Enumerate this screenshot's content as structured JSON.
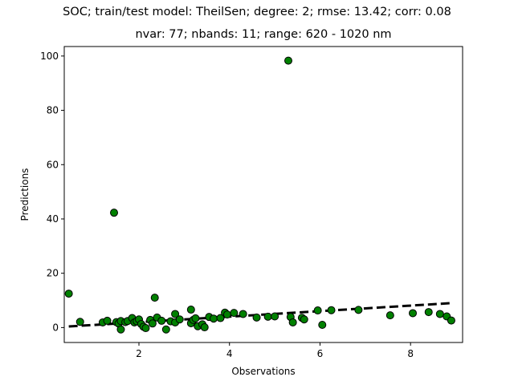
{
  "chart_data": {
    "type": "scatter",
    "title": "SOC; train/test model: TheilSen; degree: 2; rmse: 13.42; corr: 0.08",
    "subtitle": "nvar: 77; nbands: 11; range: 620 - 1020 nm",
    "xlabel": "Observations",
    "ylabel": "Predictions",
    "xlim": [
      0.35,
      9.15
    ],
    "ylim": [
      -5.5,
      103.5
    ],
    "xticks": [
      2,
      4,
      6,
      8
    ],
    "yticks": [
      0,
      20,
      40,
      60,
      80,
      100
    ],
    "grid": false,
    "point_color": "#008000",
    "point_edge_color": "#000000",
    "points": [
      [
        0.45,
        12.5
      ],
      [
        0.7,
        2.1
      ],
      [
        1.2,
        1.9
      ],
      [
        1.3,
        2.5
      ],
      [
        1.45,
        42.3
      ],
      [
        1.5,
        2.0
      ],
      [
        1.55,
        1.5
      ],
      [
        1.6,
        2.4
      ],
      [
        1.6,
        -0.7
      ],
      [
        1.7,
        2.0
      ],
      [
        1.75,
        2.4
      ],
      [
        1.85,
        3.5
      ],
      [
        1.9,
        1.9
      ],
      [
        1.95,
        2.3
      ],
      [
        2.0,
        3.0
      ],
      [
        2.05,
        1.3
      ],
      [
        2.1,
        0.3
      ],
      [
        2.15,
        -0.2
      ],
      [
        2.25,
        2.8
      ],
      [
        2.3,
        1.5
      ],
      [
        2.35,
        11.0
      ],
      [
        2.4,
        3.7
      ],
      [
        2.5,
        2.5
      ],
      [
        2.6,
        -0.7
      ],
      [
        2.7,
        2.3
      ],
      [
        2.8,
        5.0
      ],
      [
        2.8,
        1.9
      ],
      [
        2.9,
        3.0
      ],
      [
        3.15,
        6.6
      ],
      [
        3.15,
        1.6
      ],
      [
        3.2,
        2.8
      ],
      [
        3.25,
        3.4
      ],
      [
        3.3,
        0.5
      ],
      [
        3.4,
        1.2
      ],
      [
        3.45,
        0.1
      ],
      [
        3.55,
        3.9
      ],
      [
        3.65,
        3.3
      ],
      [
        3.8,
        3.5
      ],
      [
        3.9,
        5.5
      ],
      [
        3.95,
        4.8
      ],
      [
        4.1,
        5.4
      ],
      [
        4.3,
        5.0
      ],
      [
        4.6,
        3.7
      ],
      [
        4.85,
        4.0
      ],
      [
        5.0,
        4.1
      ],
      [
        5.3,
        98.3
      ],
      [
        5.35,
        3.9
      ],
      [
        5.4,
        1.9
      ],
      [
        5.6,
        3.6
      ],
      [
        5.65,
        3.0
      ],
      [
        5.95,
        6.3
      ],
      [
        6.05,
        1.0
      ],
      [
        6.25,
        6.4
      ],
      [
        6.85,
        6.5
      ],
      [
        7.55,
        4.5
      ],
      [
        8.05,
        5.3
      ],
      [
        8.4,
        5.7
      ],
      [
        8.65,
        5.0
      ],
      [
        8.8,
        4.1
      ],
      [
        8.9,
        2.6
      ]
    ],
    "trend_line": {
      "x": [
        0.45,
        8.9
      ],
      "y": [
        0.4,
        9.0
      ],
      "style": "dashed",
      "color": "#000000"
    }
  }
}
